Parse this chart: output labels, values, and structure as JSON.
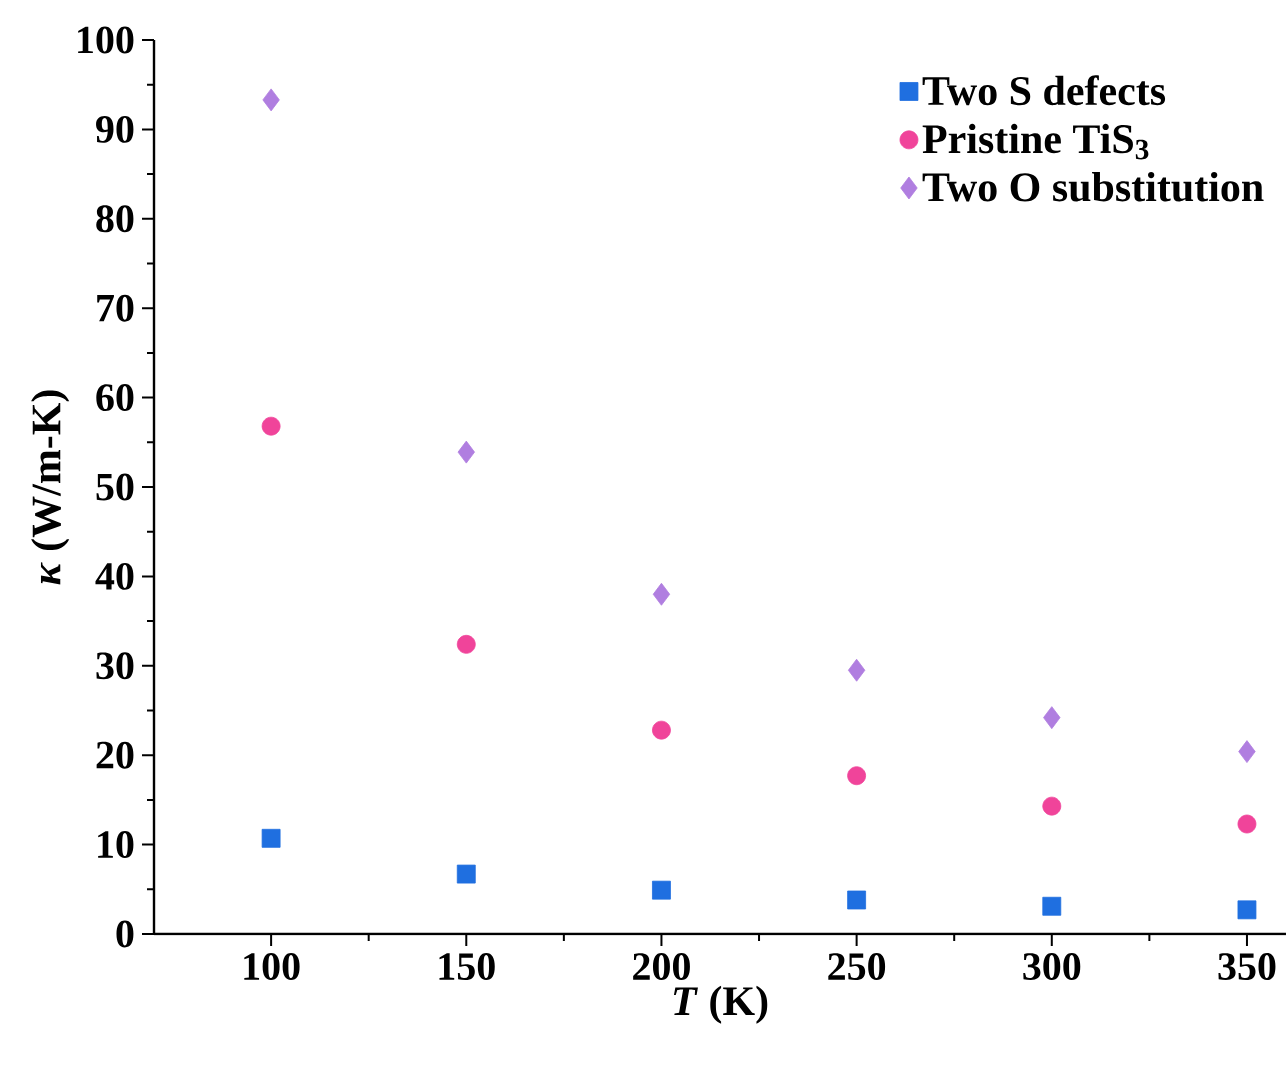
{
  "chart_data": {
    "type": "scatter",
    "xlabel": "*T* (K)",
    "ylabel": "*κ* (W/m-K)",
    "x": [
      100,
      150,
      200,
      250,
      300,
      350
    ],
    "xlim": [
      70,
      360
    ],
    "xticks": [
      100,
      150,
      200,
      250,
      300,
      350
    ],
    "ylim": [
      0,
      100
    ],
    "yticks": [
      0,
      10,
      20,
      30,
      40,
      50,
      60,
      70,
      80,
      90,
      100
    ],
    "legend": "top right",
    "grid": false,
    "series": [
      {
        "name": "Two S defects",
        "color": "#1f6fe0",
        "marker": "square",
        "values": [
          10.7,
          6.7,
          4.9,
          3.8,
          3.1,
          2.7
        ]
      },
      {
        "name": "Pristine TiS$_{3}$",
        "color": "#f0449a",
        "marker": "circle",
        "values": [
          56.8,
          32.4,
          22.8,
          17.7,
          14.3,
          12.3
        ]
      },
      {
        "name": "Two O substitution",
        "color": "#b07ee0",
        "marker": "diamond",
        "values": [
          93.3,
          53.9,
          38.0,
          29.5,
          24.2,
          20.4
        ]
      }
    ]
  }
}
